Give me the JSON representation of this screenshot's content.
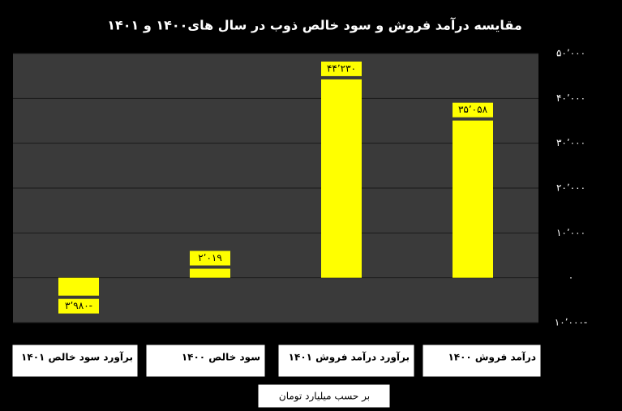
{
  "chart_data": {
    "type": "bar",
    "title": "مقایسه درآمد فروش و سود خالص ذوب در سال های۱۴۰۰ و ۱۴۰۱",
    "categories": [
      "برآورد سود خالص ۱۴۰۱",
      "سود خالص ۱۴۰۰",
      "برآورد درآمد فروش ۱۴۰۱",
      "درآمد فروش ۱۴۰۰"
    ],
    "values": [
      -3980,
      2019,
      44230,
      35058
    ],
    "value_labels": [
      "۳٬۹۸۰-",
      "۲٬۰۱۹",
      "۴۴٬۲۳۰",
      "۳۵٬۰۵۸"
    ],
    "color": "#ffff00",
    "y_label": "بر حسب میلیارد تومان",
    "ylim": [
      -10000,
      50000
    ],
    "yticks": [
      {
        "value": -10000,
        "label": "۱۰٬۰۰۰-"
      },
      {
        "value": 0,
        "label": "۰"
      },
      {
        "value": 10000,
        "label": "۱۰٬۰۰۰"
      },
      {
        "value": 20000,
        "label": "۲۰٬۰۰۰"
      },
      {
        "value": 30000,
        "label": "۳۰٬۰۰۰"
      },
      {
        "value": 40000,
        "label": "۴۰٬۰۰۰"
      },
      {
        "value": 50000,
        "label": "۵۰٬۰۰۰"
      }
    ],
    "grid": true
  }
}
